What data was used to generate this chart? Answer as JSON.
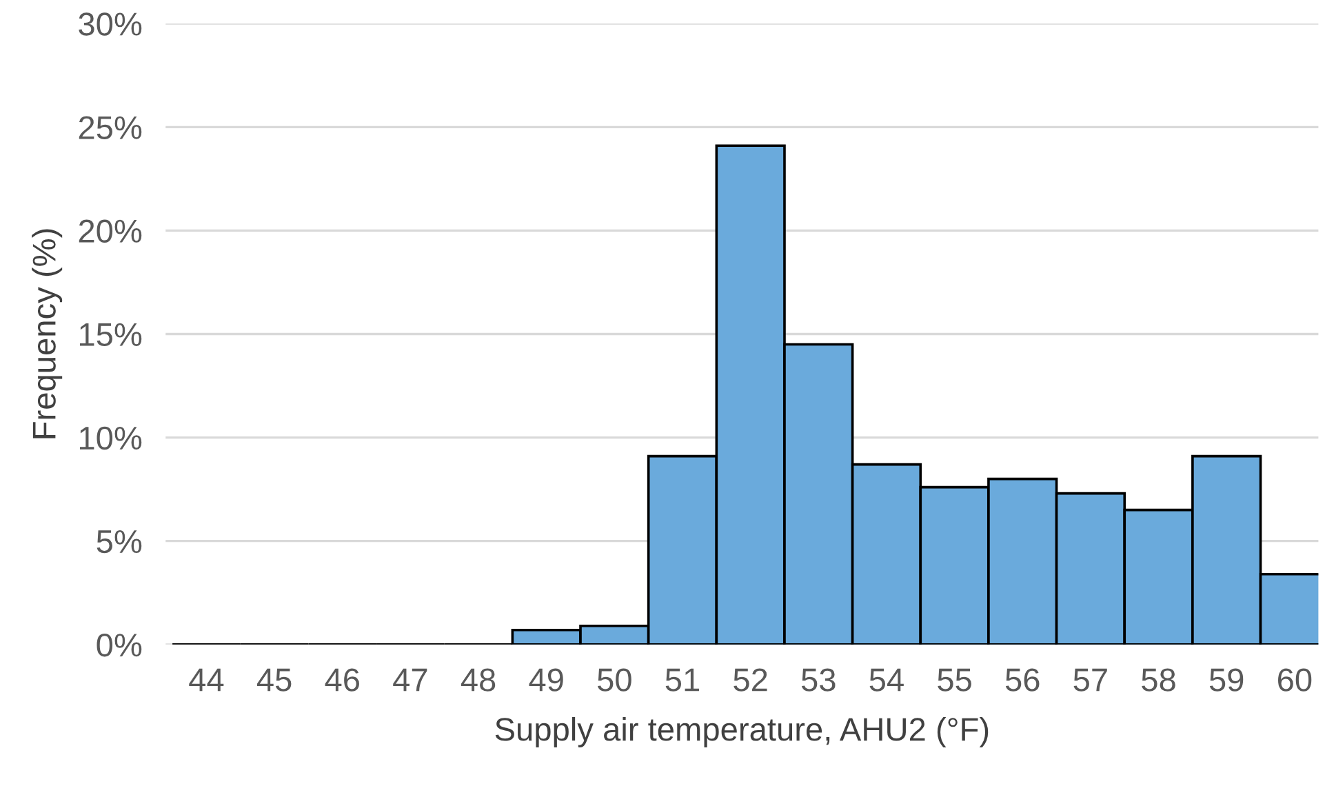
{
  "chart_data": {
    "type": "bar",
    "xlabel": "Supply air temperature, AHU2 (°F)",
    "ylabel": "Frequency (%)",
    "categories": [
      "44",
      "45",
      "46",
      "47",
      "48",
      "49",
      "50",
      "51",
      "52",
      "53",
      "54",
      "55",
      "56",
      "57",
      "58",
      "59",
      "60"
    ],
    "values": [
      0,
      0,
      0,
      0,
      0,
      0.7,
      0.9,
      9.1,
      24.1,
      14.5,
      8.7,
      7.6,
      8.0,
      7.3,
      6.5,
      9.1,
      3.4
    ],
    "color": "#6aaadc",
    "ylim": [
      0,
      30
    ],
    "yticks": [
      {
        "value": 0,
        "label": "0%"
      },
      {
        "value": 5,
        "label": "5%"
      },
      {
        "value": 10,
        "label": "10%"
      },
      {
        "value": 15,
        "label": "15%"
      },
      {
        "value": 20,
        "label": "20%"
      },
      {
        "value": 25,
        "label": "25%"
      },
      {
        "value": 30,
        "label": "30%"
      }
    ],
    "grid": "y"
  }
}
